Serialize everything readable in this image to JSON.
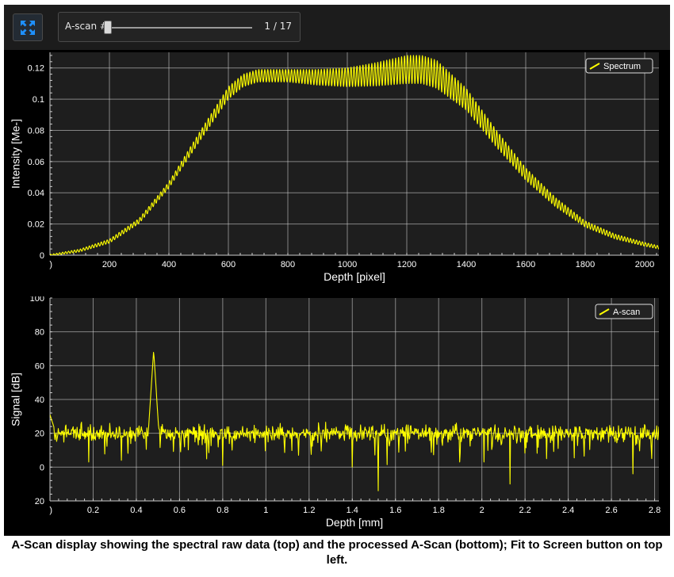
{
  "toolbar": {
    "fit_button_icon": "fit-to-screen-icon",
    "scan_label": "A-scan #",
    "scan_current": 1,
    "scan_total": 17,
    "scan_counter": "1  / 17"
  },
  "colors": {
    "background": "#000000",
    "plot_background": "#1e1e1e",
    "grid": "#d8d8d8",
    "trace": "#ffff00",
    "axis_text": "#ffffff"
  },
  "chart_data": [
    {
      "type": "line",
      "name": "spectrum",
      "xlabel": "Depth [pixel]",
      "ylabel": "Intensity [Me-]",
      "xlim": [
        0,
        2048
      ],
      "ylim": [
        0,
        0.13
      ],
      "x_ticks": [
        0,
        200,
        400,
        600,
        800,
        1000,
        1200,
        1400,
        1600,
        1800,
        2000
      ],
      "x_tick_labels": [
        ")",
        "200",
        "400",
        "600",
        "800",
        "1000",
        "1200",
        "1400",
        "1600",
        "1800",
        "2000"
      ],
      "y_ticks": [
        0,
        0.02,
        0.04,
        0.06,
        0.08,
        0.1,
        0.12
      ],
      "y_tick_labels": [
        "0",
        "0.02",
        "0.04",
        "0.06",
        "0.08",
        "0.1",
        "0.12"
      ],
      "grid": true,
      "legend": {
        "label": "Spectrum",
        "position": "top-right"
      },
      "envelope": {
        "x": [
          0,
          100,
          200,
          300,
          400,
          500,
          600,
          650,
          700,
          800,
          900,
          1000,
          1100,
          1200,
          1250,
          1300,
          1400,
          1500,
          1600,
          1700,
          1800,
          1900,
          2000,
          2048
        ],
        "y": [
          0.0,
          0.003,
          0.009,
          0.022,
          0.045,
          0.075,
          0.104,
          0.112,
          0.115,
          0.115,
          0.114,
          0.114,
          0.116,
          0.119,
          0.119,
          0.116,
          0.1,
          0.075,
          0.052,
          0.034,
          0.02,
          0.012,
          0.007,
          0.005
        ]
      },
      "fringe_amplitude": {
        "x": [
          0,
          400,
          600,
          800,
          1000,
          1200,
          1300,
          1400,
          1600,
          1800,
          2048
        ],
        "y": [
          0.0005,
          0.002,
          0.004,
          0.004,
          0.006,
          0.009,
          0.009,
          0.007,
          0.004,
          0.002,
          0.001
        ]
      },
      "fringe_period": 10
    },
    {
      "type": "line",
      "name": "ascan",
      "xlabel": "Depth [mm]",
      "ylabel": "Signal [dB]",
      "xlim": [
        0,
        2.82
      ],
      "ylim": [
        -20,
        100
      ],
      "x_ticks": [
        0,
        0.2,
        0.4,
        0.6,
        0.8,
        1,
        1.2,
        1.4,
        1.6,
        1.8,
        2,
        2.2,
        2.4,
        2.6,
        2.8
      ],
      "x_tick_labels": [
        ")",
        "0.2",
        "0.4",
        "0.6",
        "0.8",
        "1",
        "1.2",
        "1.4",
        "1.6",
        "1.8",
        "2",
        "2.2",
        "2.4",
        "2.6",
        "2.8"
      ],
      "y_ticks": [
        -20,
        0,
        20,
        40,
        60,
        80,
        100
      ],
      "y_tick_labels": [
        "20",
        "0",
        "20",
        "40",
        "60",
        "80",
        "100"
      ],
      "grid": true,
      "legend": {
        "label": "A-scan",
        "position": "top-right"
      },
      "baseline_db": 20,
      "noise_db": 4,
      "start_value_db": 31,
      "peaks": [
        {
          "x": 0.48,
          "y": 69
        }
      ],
      "dips": [
        {
          "x": 0.18,
          "y": 3
        },
        {
          "x": 0.8,
          "y": 1
        },
        {
          "x": 1.4,
          "y": 0
        },
        {
          "x": 1.52,
          "y": -14
        },
        {
          "x": 2.13,
          "y": -10
        },
        {
          "x": 2.01,
          "y": 3
        },
        {
          "x": 2.7,
          "y": -4
        },
        {
          "x": 2.3,
          "y": 5
        },
        {
          "x": 0.33,
          "y": 4
        },
        {
          "x": 1.15,
          "y": 7
        }
      ]
    }
  ],
  "caption": "A-Scan display showing the spectral raw data (top) and the processed A-Scan (bottom); Fit to Screen button on top left."
}
